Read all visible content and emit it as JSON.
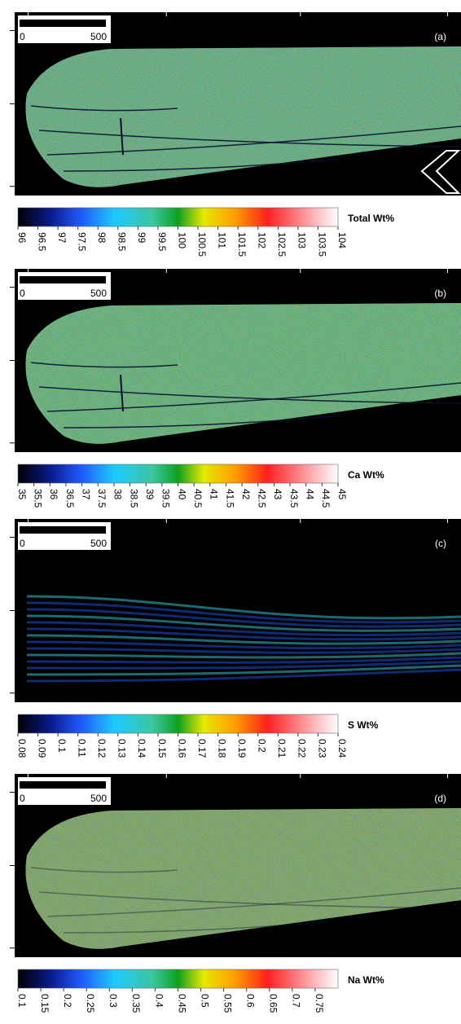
{
  "panels": [
    {
      "label": "(a)",
      "scale_bar": {
        "start": "0",
        "end": "500"
      },
      "colorbar": {
        "label": "Total Wt%",
        "lim": [
          96,
          104
        ],
        "ticks": [
          96,
          96.5,
          97,
          97.5,
          98,
          98.5,
          99,
          99.5,
          100,
          100.5,
          101,
          101.5,
          102,
          102.5,
          103,
          103.5,
          104
        ]
      }
    },
    {
      "label": "(b)",
      "scale_bar": {
        "start": "0",
        "end": "500"
      },
      "colorbar": {
        "label": "Ca Wt%",
        "lim": [
          35,
          45
        ],
        "ticks": [
          35,
          35.5,
          36,
          36.5,
          37,
          37.5,
          38,
          38.5,
          39,
          39.5,
          40,
          40.5,
          41,
          41.5,
          42,
          42.5,
          43,
          43.5,
          44,
          44.5,
          45
        ]
      }
    },
    {
      "label": "(c)",
      "scale_bar": {
        "start": "0",
        "end": "500"
      },
      "colorbar": {
        "label": "S Wt%",
        "lim": [
          0.08,
          0.24
        ],
        "ticks": [
          0.08,
          0.09,
          0.1,
          0.11,
          0.12,
          0.13,
          0.14,
          0.15,
          0.16,
          0.17,
          0.18,
          0.19,
          0.2,
          0.21,
          0.22,
          0.23,
          0.24
        ]
      }
    },
    {
      "label": "(d)",
      "scale_bar": {
        "start": "0",
        "end": "500"
      },
      "colorbar": {
        "label": "Na Wt%",
        "lim": [
          0.1,
          0.8
        ],
        "ticks": [
          0.1,
          0.15,
          0.2,
          0.25,
          0.3,
          0.35,
          0.4,
          0.45,
          0.5,
          0.55,
          0.6,
          0.65,
          0.7,
          0.75
        ]
      }
    }
  ]
}
